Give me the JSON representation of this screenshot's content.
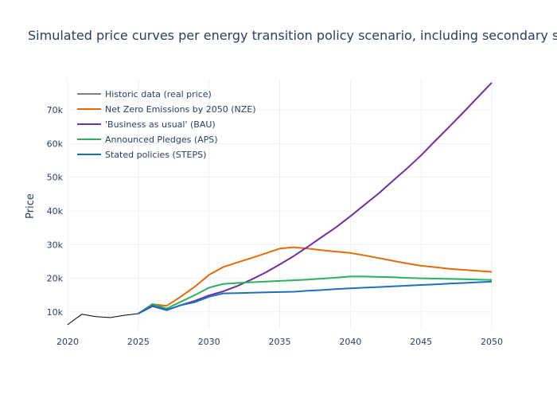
{
  "chart_data": {
    "type": "line",
    "title": "Simulated price curves per energy transition policy scenario, including secondary supply",
    "xlabel": "",
    "ylabel": "Price",
    "xlim": [
      2020,
      2050
    ],
    "ylim": [
      5000,
      79000
    ],
    "x_ticks": [
      2020,
      2025,
      2030,
      2035,
      2040,
      2045,
      2050
    ],
    "y_ticks": [
      10000,
      20000,
      30000,
      40000,
      50000,
      60000,
      70000
    ],
    "y_tick_labels": [
      "10k",
      "20k",
      "30k",
      "40k",
      "50k",
      "60k",
      "70k"
    ],
    "grid": true,
    "legend_position": "top-left",
    "series": [
      {
        "name": "Historic data (real price)",
        "color": "#000000",
        "x": [
          2020,
          2021,
          2022,
          2023,
          2024,
          2025
        ],
        "y": [
          6200,
          9300,
          8600,
          8300,
          9000,
          9500
        ]
      },
      {
        "name": "Net Zero Emissions by 2050 (NZE)",
        "color": "#e36c09",
        "x": [
          2025,
          2026,
          2027,
          2028,
          2029,
          2030,
          2031,
          2032,
          2033,
          2034,
          2035,
          2036,
          2037,
          2038,
          2039,
          2040,
          2041,
          2042,
          2043,
          2044,
          2045,
          2046,
          2047,
          2048,
          2049,
          2050
        ],
        "y": [
          9500,
          12300,
          11800,
          14500,
          17500,
          21000,
          23300,
          24700,
          26000,
          27400,
          28800,
          29200,
          28800,
          28300,
          27900,
          27500,
          26800,
          26000,
          25200,
          24400,
          23700,
          23300,
          22800,
          22500,
          22200,
          21900
        ]
      },
      {
        "name": "'Business as usual' (BAU)",
        "color": "#7030a0",
        "x": [
          2025,
          2026,
          2027,
          2028,
          2029,
          2030,
          2031,
          2032,
          2033,
          2034,
          2035,
          2036,
          2037,
          2038,
          2039,
          2040,
          2041,
          2042,
          2043,
          2044,
          2045,
          2046,
          2047,
          2048,
          2049,
          2050
        ],
        "y": [
          9500,
          11700,
          10500,
          12000,
          13300,
          14900,
          16100,
          17700,
          19600,
          21700,
          24100,
          26600,
          29400,
          32300,
          35200,
          38400,
          41800,
          45200,
          48900,
          52600,
          56500,
          60800,
          65000,
          69300,
          73700,
          78100
        ]
      },
      {
        "name": "Announced Pledges (APS)",
        "color": "#2eb05f",
        "x": [
          2025,
          2026,
          2027,
          2028,
          2029,
          2030,
          2031,
          2032,
          2033,
          2034,
          2035,
          2036,
          2037,
          2038,
          2039,
          2040,
          2041,
          2042,
          2043,
          2044,
          2045,
          2046,
          2047,
          2048,
          2049,
          2050
        ],
        "y": [
          9500,
          12300,
          11000,
          13000,
          15000,
          17200,
          18300,
          18600,
          18800,
          19000,
          19200,
          19400,
          19600,
          19900,
          20200,
          20500,
          20500,
          20400,
          20300,
          20100,
          20000,
          19900,
          19800,
          19700,
          19600,
          19500
        ]
      },
      {
        "name": "Stated policies (STEPS)",
        "color": "#1f6fbf",
        "x": [
          2025,
          2026,
          2027,
          2028,
          2029,
          2030,
          2031,
          2032,
          2033,
          2034,
          2035,
          2036,
          2037,
          2038,
          2039,
          2040,
          2041,
          2042,
          2043,
          2044,
          2045,
          2046,
          2047,
          2048,
          2049,
          2050
        ],
        "y": [
          9500,
          11900,
          10600,
          12000,
          12900,
          14500,
          15500,
          15600,
          15700,
          15800,
          15900,
          16000,
          16300,
          16500,
          16800,
          17000,
          17200,
          17400,
          17600,
          17800,
          18000,
          18200,
          18400,
          18600,
          18800,
          19000
        ]
      }
    ]
  }
}
